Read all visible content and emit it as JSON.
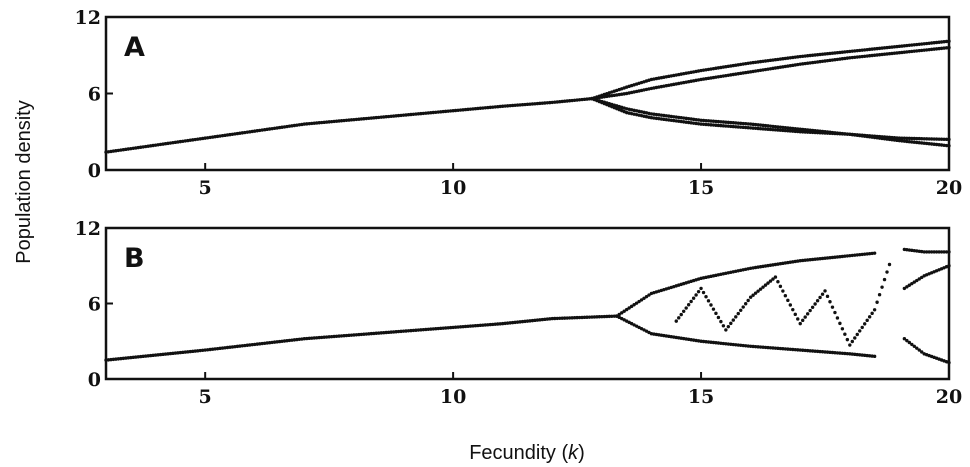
{
  "figure": {
    "ylabel": "Population density",
    "xlabel_text": "Fecundity (",
    "xlabel_var": "k",
    "xlabel_close": ")"
  },
  "chart_data": [
    {
      "type": "scatter",
      "panel": "A",
      "xlim": [
        3,
        20
      ],
      "ylim": [
        0,
        12
      ],
      "xticks": [
        5,
        10,
        15,
        20
      ],
      "yticks": [
        0,
        6,
        12
      ],
      "xtick_labels": [
        "5",
        "10",
        "15",
        "20"
      ],
      "ytick_labels": [
        "0",
        "6",
        "12"
      ],
      "grid": false,
      "series": [
        {
          "x": [
            3,
            5,
            7,
            9,
            11,
            12,
            12.8
          ],
          "y": [
            1.4,
            2.5,
            3.6,
            4.3,
            5.0,
            5.3,
            5.6
          ]
        },
        {
          "x": [
            12.8,
            13.5,
            14,
            15,
            16,
            17,
            18,
            19,
            20
          ],
          "y": [
            5.6,
            6.5,
            7.1,
            7.8,
            8.4,
            8.9,
            9.3,
            9.7,
            10.1
          ]
        },
        {
          "x": [
            12.8,
            13.5,
            14,
            15,
            16,
            17,
            18,
            19,
            20
          ],
          "y": [
            5.6,
            6.0,
            6.4,
            7.1,
            7.7,
            8.3,
            8.8,
            9.2,
            9.6
          ]
        },
        {
          "x": [
            12.8,
            13.5,
            14,
            15,
            16,
            17,
            18,
            19,
            20
          ],
          "y": [
            5.6,
            4.5,
            4.1,
            3.6,
            3.3,
            3.0,
            2.8,
            2.5,
            2.4
          ]
        },
        {
          "x": [
            12.8,
            13.5,
            14,
            15,
            16,
            17,
            18,
            19,
            20
          ],
          "y": [
            5.6,
            4.8,
            4.4,
            3.9,
            3.6,
            3.2,
            2.8,
            2.3,
            1.9
          ]
        }
      ]
    },
    {
      "type": "scatter",
      "panel": "B",
      "xlim": [
        3,
        20
      ],
      "ylim": [
        0,
        12
      ],
      "xticks": [
        5,
        10,
        15,
        20
      ],
      "yticks": [
        0,
        6,
        12
      ],
      "xtick_labels": [
        "5",
        "10",
        "15",
        "20"
      ],
      "ytick_labels": [
        "0",
        "6",
        "12"
      ],
      "grid": false,
      "series": [
        {
          "x": [
            3,
            5,
            7,
            9,
            11,
            12,
            13.3
          ],
          "y": [
            1.5,
            2.3,
            3.2,
            3.8,
            4.4,
            4.8,
            5.0
          ]
        },
        {
          "x": [
            13.3,
            14,
            15,
            16,
            17,
            18,
            18.5
          ],
          "y": [
            5.0,
            6.8,
            8.0,
            8.8,
            9.4,
            9.8,
            10.0
          ]
        },
        {
          "x": [
            13.3,
            14,
            15,
            16,
            17,
            18,
            18.5
          ],
          "y": [
            5.0,
            3.6,
            3.0,
            2.6,
            2.3,
            2.0,
            1.8
          ]
        },
        {
          "x": [
            19.1,
            19.5,
            20
          ],
          "y": [
            10.3,
            10.1,
            10.1
          ]
        },
        {
          "x": [
            19.1,
            19.5,
            20
          ],
          "y": [
            7.2,
            8.2,
            9.0
          ]
        },
        {
          "x": [
            19.1,
            19.5,
            20
          ],
          "y": [
            3.2,
            2.0,
            1.3
          ]
        },
        {
          "x": [
            14.5,
            15,
            15.5,
            16,
            16.5,
            17,
            17.5,
            18,
            18.5,
            18.8
          ],
          "y": [
            4.6,
            7.2,
            3.9,
            6.5,
            8.1,
            4.4,
            7.0,
            2.7,
            5.5,
            9.1
          ]
        }
      ]
    }
  ]
}
